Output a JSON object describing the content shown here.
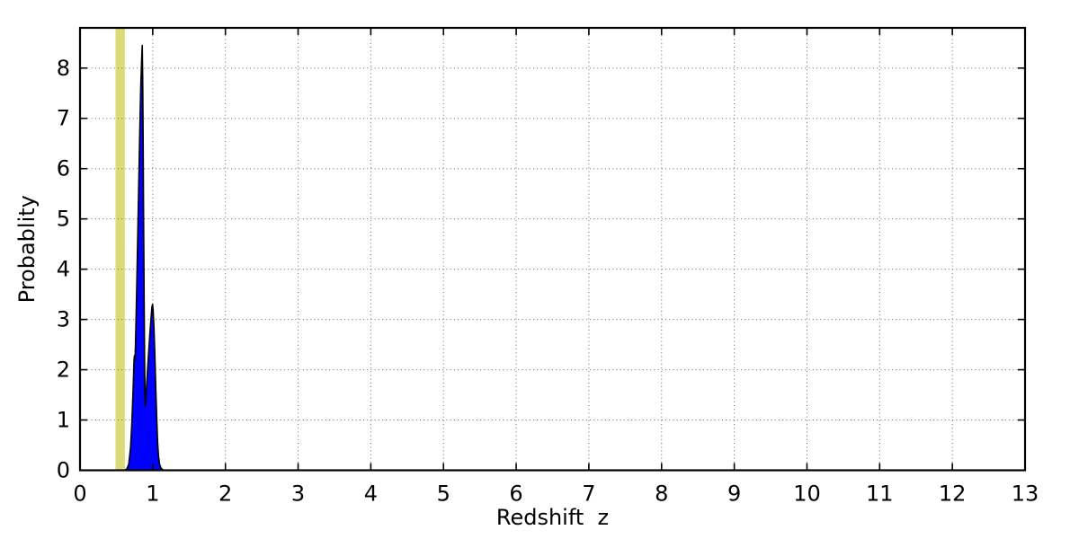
{
  "figure": {
    "background": "#ffffff"
  },
  "chart_data": {
    "type": "area",
    "title": "",
    "xlabel": "Redshift  z",
    "ylabel": "Probablity",
    "xlim": [
      0,
      13
    ],
    "ylim": [
      0,
      8.8
    ],
    "xticks": [
      0,
      1,
      2,
      3,
      4,
      5,
      6,
      7,
      8,
      9,
      10,
      11,
      12,
      13
    ],
    "yticks": [
      0,
      1,
      2,
      3,
      4,
      5,
      6,
      7,
      8
    ],
    "grid": {
      "on": true,
      "style": "dotted",
      "color": "#444444"
    },
    "axis_color": "#000000",
    "tick_direction": "in",
    "legend": "none",
    "series": [
      {
        "name": "redshift-probability-density",
        "type": "area",
        "fill_color": "#0000ff",
        "edge_color": "#000000",
        "peaks": [
          {
            "x": 0.856,
            "y": 8.45
          },
          {
            "x": 0.998,
            "y": 3.3
          }
        ],
        "points": [
          [
            0.615,
            0.0
          ],
          [
            0.645,
            0.03
          ],
          [
            0.67,
            0.12
          ],
          [
            0.695,
            0.45
          ],
          [
            0.715,
            1.0
          ],
          [
            0.733,
            1.75
          ],
          [
            0.744,
            2.2
          ],
          [
            0.75,
            2.28
          ],
          [
            0.756,
            2.18
          ],
          [
            0.762,
            2.45
          ],
          [
            0.775,
            3.3
          ],
          [
            0.79,
            4.4
          ],
          [
            0.805,
            5.5
          ],
          [
            0.82,
            6.6
          ],
          [
            0.835,
            7.6
          ],
          [
            0.848,
            8.2
          ],
          [
            0.856,
            8.45
          ],
          [
            0.862,
            7.8
          ],
          [
            0.868,
            6.6
          ],
          [
            0.875,
            5.0
          ],
          [
            0.882,
            3.4
          ],
          [
            0.888,
            2.2
          ],
          [
            0.894,
            1.45
          ],
          [
            0.898,
            1.28
          ],
          [
            0.905,
            1.42
          ],
          [
            0.92,
            1.8
          ],
          [
            0.94,
            2.25
          ],
          [
            0.96,
            2.7
          ],
          [
            0.978,
            3.05
          ],
          [
            0.99,
            3.25
          ],
          [
            0.998,
            3.3
          ],
          [
            1.006,
            3.18
          ],
          [
            1.018,
            2.8
          ],
          [
            1.03,
            2.25
          ],
          [
            1.043,
            1.6
          ],
          [
            1.056,
            1.0
          ],
          [
            1.068,
            0.55
          ],
          [
            1.08,
            0.28
          ],
          [
            1.095,
            0.12
          ],
          [
            1.115,
            0.04
          ],
          [
            1.15,
            0.0
          ]
        ]
      }
    ],
    "annotations": [
      {
        "name": "vertical-highlight-band",
        "type": "vband",
        "x_center": 0.55,
        "x_min": 0.488,
        "x_max": 0.617,
        "color": "#dbdc79"
      }
    ]
  }
}
